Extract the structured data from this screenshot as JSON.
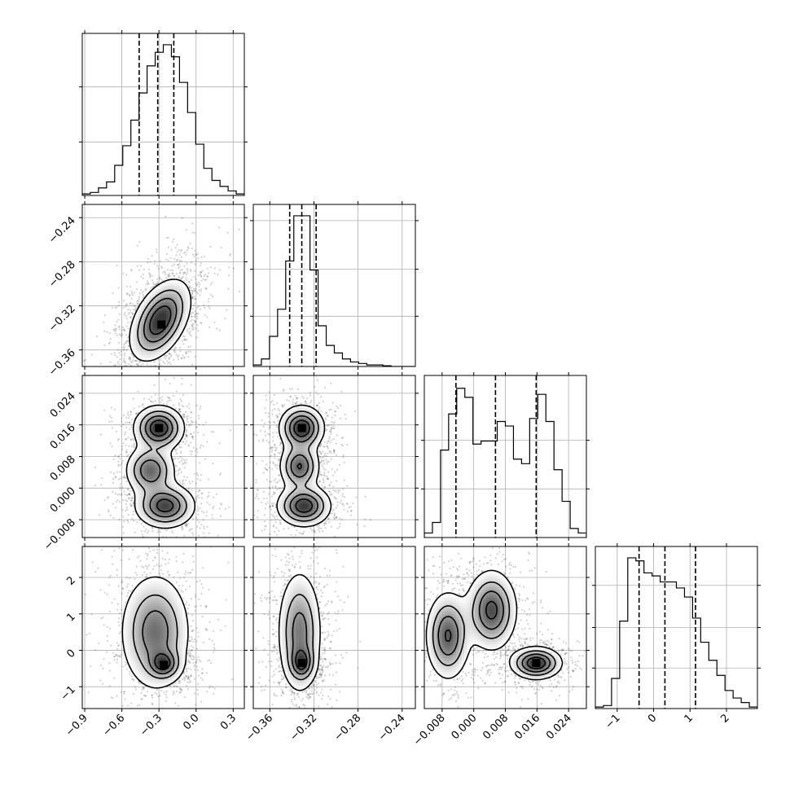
{
  "chart_data": {
    "type": "corner",
    "parameters": 4,
    "grid": true,
    "quantile_lines": "dashed",
    "axis_ranges": [
      [
        -0.92,
        0.39
      ],
      [
        -0.375,
        -0.228
      ],
      [
        -0.0125,
        0.0285
      ],
      [
        -1.6,
        2.85
      ]
    ],
    "x_tick_values": [
      [
        -0.9,
        -0.6,
        -0.3,
        0.0,
        0.3
      ],
      [
        -0.36,
        -0.32,
        -0.28,
        -0.24
      ],
      [
        -0.008,
        0.0,
        0.008,
        0.016,
        0.024
      ],
      [
        -1,
        0,
        1,
        2
      ]
    ],
    "x_tick_labels": [
      [
        "−0.9",
        "−0.6",
        "−0.3",
        "0.0",
        "0.3"
      ],
      [
        "−0.36",
        "−0.32",
        "−0.28",
        "−0.24"
      ],
      [
        "−0.008",
        "0.000",
        "0.008",
        "0.016",
        "0.024"
      ],
      [
        "−1",
        "0",
        "1",
        "2"
      ]
    ],
    "y_tick_labels": [
      [],
      [
        "−0.24",
        "−0.28",
        "−0.32",
        "−0.36"
      ],
      [
        "0.024",
        "0.016",
        "0.008",
        "0.000",
        "−0.008"
      ],
      [
        "2",
        "1",
        "0",
        "−1"
      ]
    ],
    "y_tick_values": [
      [],
      [
        -0.24,
        -0.28,
        -0.32,
        -0.36
      ],
      [
        0.024,
        0.016,
        0.008,
        0.0,
        -0.008
      ],
      [
        2,
        1,
        0,
        -1
      ]
    ],
    "quantiles": [
      [
        -0.46,
        -0.31,
        -0.18
      ],
      [
        -0.342,
        -0.331,
        -0.318
      ],
      [
        -0.0045,
        0.0055,
        0.0158
      ],
      [
        -0.4,
        0.31,
        1.15
      ]
    ],
    "histograms": [
      {
        "edges": [
          -0.92,
          0.39
        ],
        "counts": [
          0.01,
          0.02,
          0.05,
          0.09,
          0.2,
          0.33,
          0.5,
          0.68,
          0.86,
          0.95,
          1.0,
          0.92,
          0.75,
          0.55,
          0.34,
          0.18,
          0.1,
          0.06,
          0.03,
          0.01
        ]
      },
      {
        "edges": [
          -0.375,
          -0.228
        ],
        "counts": [
          0.01,
          0.05,
          0.2,
          0.38,
          0.7,
          1.0,
          1.0,
          0.64,
          0.27,
          0.14,
          0.09,
          0.05,
          0.03,
          0.02,
          0.01,
          0.01,
          0.005,
          0.0,
          0.0,
          0.0
        ]
      },
      {
        "edges": [
          -0.0125,
          0.0285
        ],
        "counts": [
          0.03,
          0.1,
          0.58,
          0.82,
          0.99,
          0.93,
          0.62,
          0.64,
          0.64,
          0.77,
          0.74,
          0.52,
          0.49,
          0.79,
          0.95,
          0.77,
          0.45,
          0.24,
          0.06,
          0.03
        ]
      },
      {
        "edges": [
          -1.6,
          2.85
        ],
        "counts": [
          0.01,
          0.02,
          0.2,
          0.58,
          1.0,
          0.98,
          0.9,
          0.88,
          0.84,
          0.84,
          0.8,
          0.74,
          0.6,
          0.44,
          0.32,
          0.22,
          0.12,
          0.07,
          0.04,
          0.01
        ]
      }
    ],
    "hist_y_tick_fractions": [
      [
        0.33,
        0.67
      ],
      [
        0.31,
        0.6,
        0.9
      ],
      [
        0.3,
        0.6
      ],
      [
        0.25,
        0.5,
        0.76
      ]
    ],
    "joint": [
      {
        "row": 1,
        "col": 0,
        "blobs": [
          {
            "cx": -0.29,
            "cy": -0.333,
            "sx": 0.12,
            "sy": 0.018,
            "rho": 0.45,
            "w": 1.0
          }
        ],
        "peaks": [
          {
            "x": -0.28,
            "y": -0.337
          }
        ]
      },
      {
        "row": 2,
        "col": 0,
        "blobs": [
          {
            "cx": -0.3,
            "cy": 0.0152,
            "sx": 0.1,
            "sy": 0.0028,
            "rho": 0.0,
            "w": 1.0
          },
          {
            "cx": -0.37,
            "cy": 0.0045,
            "sx": 0.1,
            "sy": 0.0032,
            "rho": 0.0,
            "w": 0.75
          },
          {
            "cx": -0.25,
            "cy": -0.0045,
            "sx": 0.12,
            "sy": 0.0028,
            "rho": 0.0,
            "w": 0.9
          }
        ],
        "peaks": [
          {
            "x": -0.3,
            "y": 0.0152
          }
        ]
      },
      {
        "row": 2,
        "col": 1,
        "blobs": [
          {
            "cx": -0.331,
            "cy": 0.0152,
            "sx": 0.01,
            "sy": 0.0028,
            "rho": 0.0,
            "w": 1.0
          },
          {
            "cx": -0.333,
            "cy": 0.0055,
            "sx": 0.009,
            "sy": 0.003,
            "rho": 0.0,
            "w": 0.8
          },
          {
            "cx": -0.329,
            "cy": -0.0045,
            "sx": 0.012,
            "sy": 0.0026,
            "rho": 0.0,
            "w": 0.95
          }
        ],
        "peaks": [
          {
            "x": -0.331,
            "y": 0.0152
          }
        ]
      },
      {
        "row": 3,
        "col": 0,
        "blobs": [
          {
            "cx": -0.33,
            "cy": 0.5,
            "sx": 0.14,
            "sy": 0.8,
            "rho": 0.0,
            "w": 1.0
          },
          {
            "cx": -0.26,
            "cy": -0.38,
            "sx": 0.07,
            "sy": 0.22,
            "rho": 0.0,
            "w": 0.9
          }
        ],
        "peaks": [
          {
            "x": -0.26,
            "y": -0.4
          }
        ]
      },
      {
        "row": 3,
        "col": 1,
        "blobs": [
          {
            "cx": -0.333,
            "cy": 0.5,
            "sx": 0.01,
            "sy": 0.85,
            "rho": 0.0,
            "w": 1.0
          },
          {
            "cx": -0.331,
            "cy": -0.35,
            "sx": 0.006,
            "sy": 0.25,
            "rho": 0.0,
            "w": 0.9
          }
        ],
        "peaks": [
          {
            "x": -0.331,
            "y": -0.35
          }
        ]
      },
      {
        "row": 3,
        "col": 2,
        "blobs": [
          {
            "cx": -0.0065,
            "cy": 0.4,
            "sx": 0.0028,
            "sy": 0.6,
            "rho": 0.0,
            "w": 0.8
          },
          {
            "cx": 0.0045,
            "cy": 1.1,
            "sx": 0.0032,
            "sy": 0.55,
            "rho": 0.0,
            "w": 0.85
          },
          {
            "cx": 0.0158,
            "cy": -0.35,
            "sx": 0.0032,
            "sy": 0.22,
            "rho": 0.0,
            "w": 1.0
          }
        ],
        "peaks": [
          {
            "x": 0.0158,
            "y": -0.35
          }
        ]
      }
    ]
  }
}
